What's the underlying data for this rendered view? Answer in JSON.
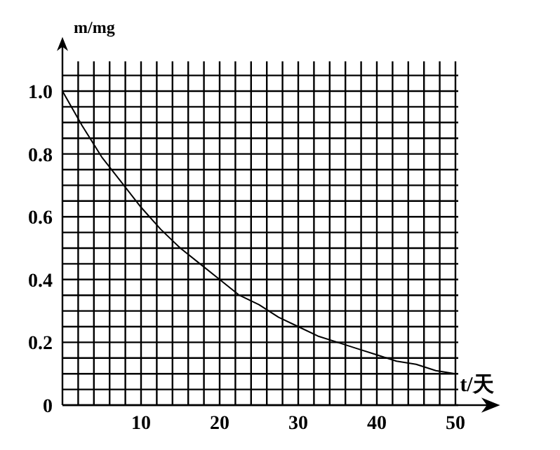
{
  "chart_data": {
    "type": "line",
    "xlabel": "t/天",
    "ylabel": "m/mg",
    "x": [
      0,
      2.5,
      5,
      7.5,
      10,
      12.5,
      15,
      17.5,
      20,
      22.5,
      25,
      27.5,
      30,
      32.5,
      35,
      37.5,
      40,
      42.5,
      45,
      47.5,
      50
    ],
    "series": [
      {
        "color": "#000000",
        "values": [
          1.0,
          0.89,
          0.79,
          0.71,
          0.63,
          0.56,
          0.5,
          0.45,
          0.4,
          0.35,
          0.32,
          0.28,
          0.25,
          0.22,
          0.2,
          0.18,
          0.16,
          0.14,
          0.13,
          0.11,
          0.1
        ]
      }
    ],
    "xlim": [
      0,
      54.5
    ],
    "ylim": [
      0,
      1.15
    ],
    "xticks": [
      {
        "value": 2,
        "label": null
      },
      {
        "value": 4,
        "label": null
      },
      {
        "value": 6,
        "label": null
      },
      {
        "value": 8,
        "label": null
      },
      10,
      {
        "value": 12,
        "label": null
      },
      {
        "value": 14,
        "label": null
      },
      {
        "value": 16,
        "label": null
      },
      {
        "value": 18,
        "label": null
      },
      20,
      {
        "value": 22,
        "label": null
      },
      {
        "value": 24,
        "label": null
      },
      {
        "value": 26,
        "label": null
      },
      {
        "value": 28,
        "label": null
      },
      30,
      {
        "value": 32,
        "label": null
      },
      {
        "value": 34,
        "label": null
      },
      {
        "value": 36,
        "label": null
      },
      {
        "value": 38,
        "label": null
      },
      40,
      {
        "value": 42,
        "label": null
      },
      {
        "value": 44,
        "label": null
      },
      {
        "value": 46,
        "label": null
      },
      {
        "value": 48,
        "label": null
      },
      50
    ],
    "yticks": [
      0,
      {
        "value": 0.05,
        "label": null
      },
      {
        "value": 0.1,
        "label": null
      },
      {
        "value": 0.15,
        "label": null
      },
      0.2,
      {
        "value": 0.25,
        "label": null
      },
      {
        "value": 0.3,
        "label": null
      },
      {
        "value": 0.35,
        "label": null
      },
      0.4,
      {
        "value": 0.45,
        "label": null
      },
      {
        "value": 0.5,
        "label": null
      },
      {
        "value": 0.55,
        "label": null
      },
      0.6,
      {
        "value": 0.65,
        "label": null
      },
      {
        "value": 0.7,
        "label": null
      },
      {
        "value": 0.75,
        "label": null
      },
      0.8,
      {
        "value": 0.85,
        "label": null
      },
      {
        "value": 0.9,
        "label": null
      },
      {
        "value": 0.95,
        "label": null
      },
      {
        "value": 1.0,
        "label": "1.0"
      },
      {
        "value": 1.05,
        "label": null
      }
    ],
    "grid": true,
    "line_style": "solid"
  }
}
